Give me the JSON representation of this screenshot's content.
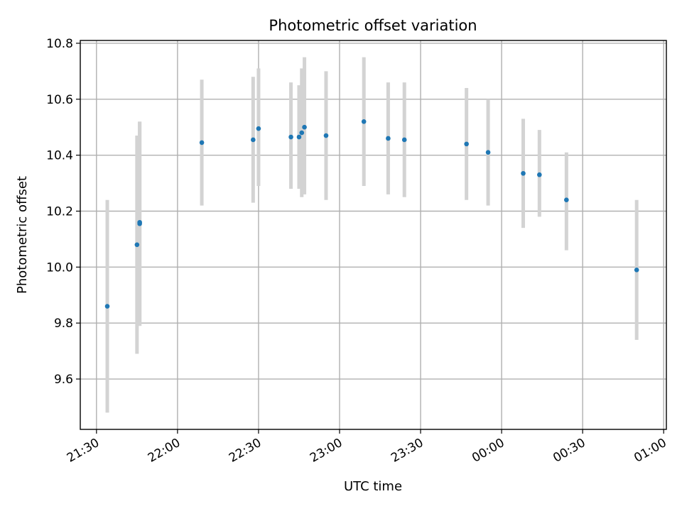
{
  "chart_data": {
    "type": "scatter",
    "title": "Photometric offset variation",
    "xlabel": "UTC time",
    "ylabel": "Photometric offset",
    "xlim": [
      "21:24",
      "01:01"
    ],
    "ylim": [
      9.42,
      10.81
    ],
    "grid": true,
    "x_tick_labels": [
      "21:30",
      "22:00",
      "22:30",
      "23:00",
      "23:30",
      "00:00",
      "00:30",
      "01:00"
    ],
    "x_ticks": [
      "21:30",
      "22:00",
      "22:30",
      "23:00",
      "23:30",
      "00:00",
      "00:30",
      "01:00"
    ],
    "y_ticks": [
      9.6,
      9.8,
      10.0,
      10.2,
      10.4,
      10.6,
      10.8
    ],
    "y_tick_labels": [
      "9.6",
      "9.8",
      "10.0",
      "10.2",
      "10.4",
      "10.6",
      "10.8"
    ],
    "colors": {
      "marker": "#1f77b4",
      "errorbar": "#d3d3d3"
    },
    "series": [
      {
        "points": [
          {
            "x": "21:34",
            "y": 9.86,
            "ylow": 9.48,
            "yhigh": 10.24
          },
          {
            "x": "21:45",
            "y": 10.08,
            "ylow": 9.69,
            "yhigh": 10.47
          },
          {
            "x": "21:46",
            "y": 10.16,
            "ylow": 9.79,
            "yhigh": 10.52
          },
          {
            "x": "21:46",
            "y": 10.155,
            "ylow": 9.79,
            "yhigh": 10.52
          },
          {
            "x": "22:09",
            "y": 10.445,
            "ylow": 10.22,
            "yhigh": 10.67
          },
          {
            "x": "22:28",
            "y": 10.455,
            "ylow": 10.23,
            "yhigh": 10.68
          },
          {
            "x": "22:30",
            "y": 10.495,
            "ylow": 10.29,
            "yhigh": 10.71
          },
          {
            "x": "22:42",
            "y": 10.465,
            "ylow": 10.28,
            "yhigh": 10.66
          },
          {
            "x": "22:45",
            "y": 10.465,
            "ylow": 10.28,
            "yhigh": 10.65
          },
          {
            "x": "22:46",
            "y": 10.48,
            "ylow": 10.25,
            "yhigh": 10.71
          },
          {
            "x": "22:47",
            "y": 10.5,
            "ylow": 10.26,
            "yhigh": 10.75
          },
          {
            "x": "22:55",
            "y": 10.47,
            "ylow": 10.24,
            "yhigh": 10.7
          },
          {
            "x": "23:09",
            "y": 10.52,
            "ylow": 10.29,
            "yhigh": 10.75
          },
          {
            "x": "23:18",
            "y": 10.46,
            "ylow": 10.26,
            "yhigh": 10.66
          },
          {
            "x": "23:24",
            "y": 10.455,
            "ylow": 10.25,
            "yhigh": 10.66
          },
          {
            "x": "23:47",
            "y": 10.44,
            "ylow": 10.24,
            "yhigh": 10.64
          },
          {
            "x": "23:55",
            "y": 10.41,
            "ylow": 10.22,
            "yhigh": 10.6
          },
          {
            "x": "00:08",
            "y": 10.335,
            "ylow": 10.14,
            "yhigh": 10.53
          },
          {
            "x": "00:14",
            "y": 10.33,
            "ylow": 10.18,
            "yhigh": 10.49
          },
          {
            "x": "00:24",
            "y": 10.24,
            "ylow": 10.06,
            "yhigh": 10.41
          },
          {
            "x": "00:50",
            "y": 9.99,
            "ylow": 9.74,
            "yhigh": 10.24
          }
        ]
      }
    ]
  }
}
